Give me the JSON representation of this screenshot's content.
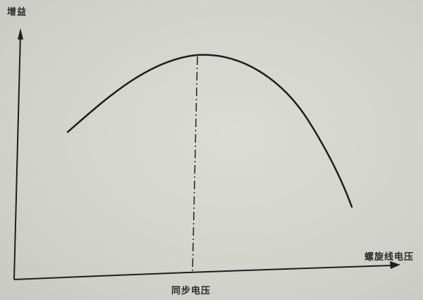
{
  "diagram": {
    "y_axis_label": "增益",
    "x_axis_label": "螺旋线电压",
    "marker_label": "同步电压",
    "curve_shape": "single peak, rising then falling; peak aligned with marker",
    "marker_style": "dash-dot vertical line from peak down to x-axis",
    "line_color": "#1e1e1e"
  }
}
